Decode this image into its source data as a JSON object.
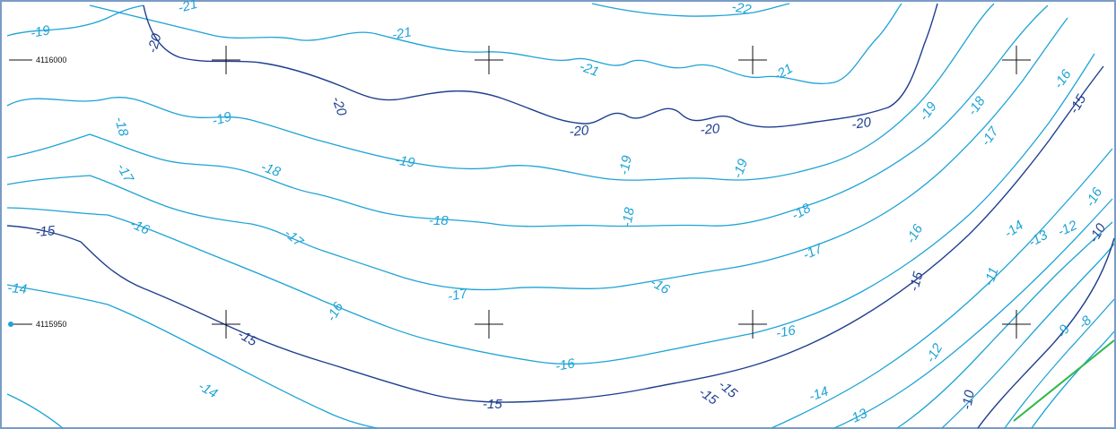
{
  "map": {
    "northing_labels": [
      "4116000",
      "4115950"
    ],
    "contour_interval": 1,
    "colors": {
      "major_contour": "#1f3f8f",
      "minor_contour": "#1ea3d6",
      "grid_cross": "#111111",
      "boundary": "#2fb84a",
      "frame": "#7a9cc6"
    },
    "contour_labels": [
      {
        "text": "-21"
      },
      {
        "text": "-22"
      },
      {
        "text": "-19"
      },
      {
        "text": "-20"
      },
      {
        "text": "-21"
      },
      {
        "text": "-21"
      },
      {
        "text": "-21"
      },
      {
        "text": "-16"
      },
      {
        "text": "-18"
      },
      {
        "text": "-19"
      },
      {
        "text": "-20"
      },
      {
        "text": "-20"
      },
      {
        "text": "-20"
      },
      {
        "text": "-20"
      },
      {
        "text": "-19"
      },
      {
        "text": "-18"
      },
      {
        "text": "-15"
      },
      {
        "text": "-17"
      },
      {
        "text": "-17"
      },
      {
        "text": "-18"
      },
      {
        "text": "-19"
      },
      {
        "text": "-19"
      },
      {
        "text": "-19"
      },
      {
        "text": "-16"
      },
      {
        "text": "-17"
      },
      {
        "text": "-18"
      },
      {
        "text": "-18"
      },
      {
        "text": "-18"
      },
      {
        "text": "-15"
      },
      {
        "text": "-16"
      },
      {
        "text": "-16"
      },
      {
        "text": "-14"
      },
      {
        "text": "-13"
      },
      {
        "text": "-12"
      },
      {
        "text": "-17"
      },
      {
        "text": "-17"
      },
      {
        "text": "-15"
      },
      {
        "text": "-11"
      },
      {
        "text": "-10"
      },
      {
        "text": "-14"
      },
      {
        "text": "-16"
      },
      {
        "text": "-16"
      },
      {
        "text": "-16"
      },
      {
        "text": "-9"
      },
      {
        "text": "-8"
      },
      {
        "text": "-15"
      },
      {
        "text": "-12"
      },
      {
        "text": "-15"
      },
      {
        "text": "-14"
      },
      {
        "text": "-16"
      },
      {
        "text": "-15"
      },
      {
        "text": "-15"
      },
      {
        "text": "-14"
      },
      {
        "text": "-13"
      },
      {
        "text": "-10"
      }
    ]
  }
}
